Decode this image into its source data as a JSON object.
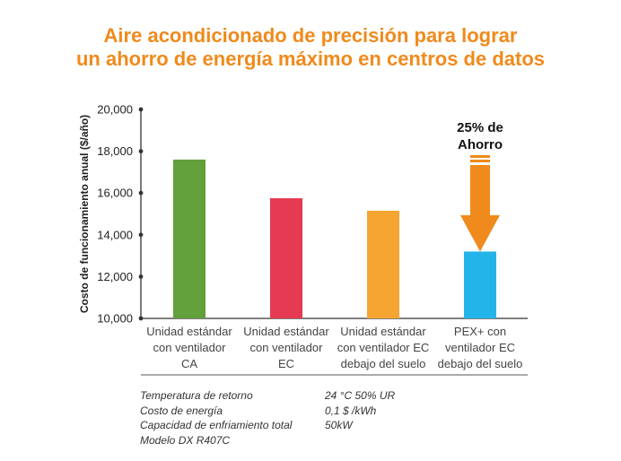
{
  "title_line1": "Aire acondicionado de precisión para lograr",
  "title_line2": "un ahorro de energía máximo en centros de datos",
  "chart_data": {
    "type": "bar",
    "ylabel": "Costo de funcionamiento anual ($/año)",
    "ylim": [
      10000,
      20000
    ],
    "yticks": [
      "10,000",
      "12,000",
      "14,000",
      "16,000",
      "18,000",
      "20,000"
    ],
    "ytick_values": [
      10000,
      12000,
      14000,
      16000,
      18000,
      20000
    ],
    "categories": [
      [
        "Unidad estándar",
        "con ventilador",
        "CA"
      ],
      [
        "Unidad estándar",
        "con ventilador",
        "EC"
      ],
      [
        "Unidad estándar",
        "con ventilador EC",
        "debajo del suelo"
      ],
      [
        "PEX+ con",
        "ventilador EC",
        "debajo del suelo"
      ]
    ],
    "values": [
      17600,
      15750,
      15150,
      13200
    ],
    "colors": [
      "#62a03c",
      "#e53a52",
      "#f6a630",
      "#23b5ea"
    ],
    "annotation": {
      "line1": "25% de",
      "line2": "Ahorro",
      "color": "#f08a1c"
    }
  },
  "notes": [
    {
      "label": "Temperatura de retorno",
      "value": "24 °C 50% UR"
    },
    {
      "label": "Costo de energía",
      "value": "0,1 $ /kWh"
    },
    {
      "label": "Capacidad de enfriamiento total",
      "value": "50kW"
    },
    {
      "label": "Modelo DX R407C",
      "value": ""
    }
  ]
}
